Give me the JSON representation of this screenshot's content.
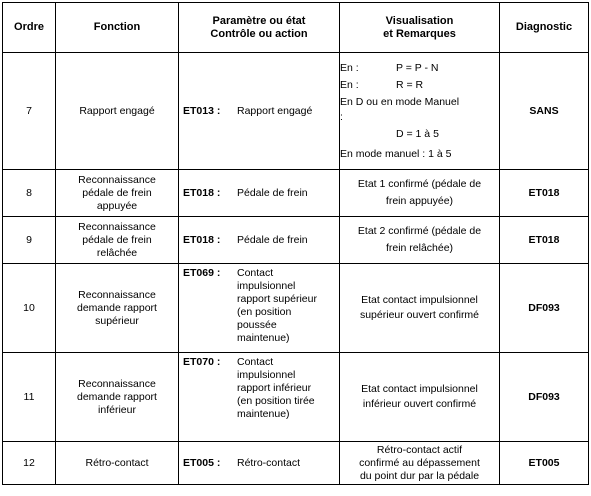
{
  "headers": {
    "ordre": "Ordre",
    "fonction": "Fonction",
    "parametre_line1": "Paramètre ou état",
    "parametre_line2": "Contrôle ou action",
    "visualisation_line1": "Visualisation",
    "visualisation_line2": "et Remarques",
    "diagnostic": "Diagnostic"
  },
  "rows": [
    {
      "ordre": "7",
      "fonction_lines": [
        "Rapport engagé"
      ],
      "code": "ET013 :",
      "param_lines": [
        "Rapport engagé"
      ],
      "vis": {
        "l1_key": "En :",
        "l1_val": "P = P - N",
        "l2_key": "En :",
        "l2_val": "R = R",
        "l3": "En D ou en mode Manuel",
        "l4": ":",
        "l5": "D = 1 à 5",
        "l6": "En mode manuel : 1 à 5"
      },
      "diagnostic": "SANS"
    },
    {
      "ordre": "8",
      "fonction_lines": [
        "Reconnaissance",
        "pédale de frein",
        "appuyée"
      ],
      "code": "ET018 :",
      "param_lines": [
        "Pédale de frein"
      ],
      "vis_lines": [
        "Etat 1 confirmé (pédale de",
        "frein appuyée)"
      ],
      "diagnostic": "ET018"
    },
    {
      "ordre": "9",
      "fonction_lines": [
        "Reconnaissance",
        "pédale de frein",
        "relâchée"
      ],
      "code": "ET018 :",
      "param_lines": [
        "Pédale de frein"
      ],
      "vis_lines": [
        "Etat 2 confirmé (pédale de",
        "frein relâchée)"
      ],
      "diagnostic": "ET018"
    },
    {
      "ordre": "10",
      "fonction_lines": [
        "Reconnaissance",
        "demande rapport",
        "supérieur"
      ],
      "code": "ET069 :",
      "param_lines": [
        "Contact",
        "impulsionnel",
        "rapport supérieur",
        "(en position",
        "poussée",
        "maintenue)"
      ],
      "vis_lines": [
        "Etat contact impulsionnel",
        "supérieur ouvert confirmé"
      ],
      "diagnostic": "DF093"
    },
    {
      "ordre": "11",
      "fonction_lines": [
        "Reconnaissance",
        "demande rapport",
        "inférieur"
      ],
      "code": "ET070 :",
      "param_lines": [
        "Contact",
        "impulsionnel",
        "rapport inférieur",
        "(en position tirée",
        "maintenue)"
      ],
      "vis_lines": [
        "Etat contact impulsionnel",
        "inférieur ouvert confirmé"
      ],
      "diagnostic": "DF093"
    },
    {
      "ordre": "12",
      "fonction_lines": [
        "Rétro-contact"
      ],
      "code": "ET005 :",
      "param_lines": [
        "Rétro-contact"
      ],
      "vis_lines": [
        "Rétro-contact actif",
        "confirmé au dépassement",
        "du point dur par la pédale"
      ],
      "diagnostic": "ET005"
    }
  ]
}
